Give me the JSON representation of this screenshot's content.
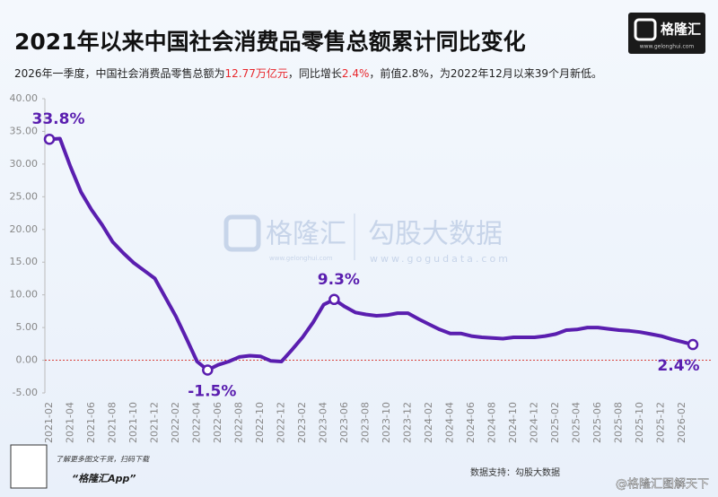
{
  "chart_data": {
    "type": "line",
    "title": "2021年以来中国社会消费品零售总额累计同比变化",
    "subtitle": [
      {
        "text": "2026年一季度，中国社会消费品零售总额为",
        "highlight": false
      },
      {
        "text": "12.77万亿元",
        "highlight": true
      },
      {
        "text": "，同比增长",
        "highlight": false
      },
      {
        "text": "2.4%",
        "highlight": true
      },
      {
        "text": "，前值2.8%，为2022年12月以来39个月新低。",
        "highlight": false
      }
    ],
    "highlight_color": "#e8262b",
    "brand": "格隆汇",
    "brand_url": "www.gelonghui.com",
    "watermark": [
      "格隆汇",
      "www.gelonghui.com",
      "勾股大数据",
      "www.gogudata.com"
    ],
    "footer": {
      "qr_note": "了解更多图文干货，扫码下载",
      "app": "“格隆汇App”",
      "source": "数据支持：勾股大数据",
      "credit": "@格隆汇图解天下"
    },
    "categories": [
      "2021-02",
      null,
      "2021-04",
      null,
      "2021-06",
      null,
      "2021-08",
      null,
      "2021-10",
      null,
      "2021-12",
      null,
      "2022-02",
      null,
      "2022-04",
      null,
      "2022-06",
      null,
      "2022-08",
      null,
      "2022-10",
      null,
      "2022-12",
      null,
      "2023-02",
      null,
      "2023-04",
      null,
      "2023-06",
      null,
      "2023-08",
      null,
      "2023-10",
      null,
      "2023-12",
      null,
      "2024-02",
      null,
      "2024-04",
      null,
      "2024-06",
      null,
      "2024-08",
      null,
      "2024-10",
      null,
      "2024-12",
      null,
      "2025-02",
      null,
      "2025-04",
      null,
      "2025-06",
      null,
      "2025-08",
      null,
      "2025-10",
      null,
      "2025-12",
      null,
      "2026-02",
      null
    ],
    "series": [
      {
        "name": "社会消费品零售总额累计同比",
        "color": "#5a1eaf",
        "values": [
          33.8,
          33.9,
          29.6,
          25.7,
          23.0,
          20.7,
          18.1,
          16.4,
          14.9,
          13.7,
          12.5,
          9.6,
          6.7,
          3.3,
          -0.2,
          -1.5,
          -0.7,
          -0.2,
          0.5,
          0.7,
          0.6,
          -0.1,
          -0.2,
          1.6,
          3.5,
          5.8,
          8.5,
          9.3,
          8.2,
          7.3,
          7.0,
          6.8,
          6.9,
          7.2,
          7.2,
          6.3,
          5.5,
          4.7,
          4.1,
          4.1,
          3.7,
          3.5,
          3.4,
          3.3,
          3.5,
          3.5,
          3.5,
          3.7,
          4.0,
          4.6,
          4.7,
          5.0,
          5.0,
          4.8,
          4.6,
          4.5,
          4.3,
          4.0,
          3.7,
          3.2,
          2.8,
          2.4
        ],
        "value_labels": [
          "33.8%",
          null,
          null,
          null,
          null,
          null,
          null,
          null,
          null,
          null,
          null,
          null,
          null,
          null,
          null,
          "-1.5%",
          null,
          null,
          null,
          null,
          null,
          null,
          null,
          null,
          null,
          null,
          null,
          "9.3%",
          null,
          null,
          null,
          null,
          null,
          null,
          null,
          null,
          null,
          null,
          null,
          null,
          null,
          null,
          null,
          null,
          null,
          null,
          null,
          null,
          null,
          null,
          null,
          null,
          null,
          null,
          null,
          null,
          null,
          null,
          null,
          null,
          null,
          "2.4%"
        ]
      }
    ],
    "ylim": [
      -5,
      40
    ],
    "yticks": [
      {
        "value": -5,
        "label": "-5.00"
      },
      {
        "value": 0,
        "label": "0.00"
      },
      {
        "value": 5,
        "label": "5.00"
      },
      {
        "value": 10,
        "label": "10.00"
      },
      {
        "value": 15,
        "label": "15.00"
      },
      {
        "value": 20,
        "label": "20.00"
      },
      {
        "value": 25,
        "label": "25.00"
      },
      {
        "value": 30,
        "label": "30.00"
      },
      {
        "value": 35,
        "label": "35.00"
      },
      {
        "value": 40,
        "label": "40.00"
      }
    ],
    "zero_line": true
  }
}
